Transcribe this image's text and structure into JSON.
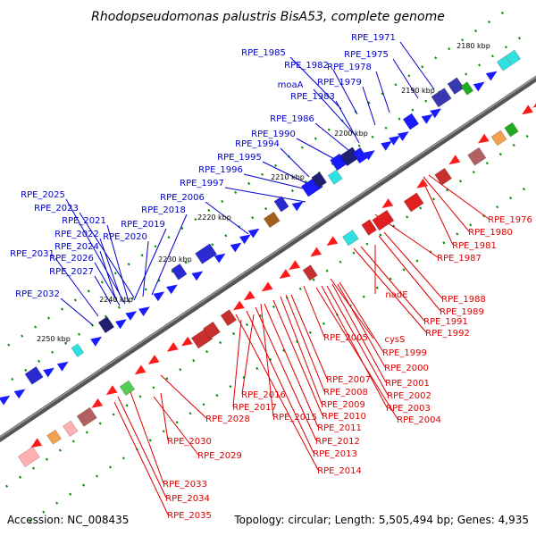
{
  "title": "Rhodopseudomonas palustris BisA53, complete genome",
  "footer": {
    "accession": "Accession: NC_008435",
    "topology": "Topology: circular; Length: 5,505,494 bp; Genes: 4,935"
  },
  "colors": {
    "forward_label": "#0000cc",
    "reverse_label": "#dd0000",
    "forward_gene": "#1a1aff",
    "reverse_gene": "#ff1a1a",
    "backbone": "#555555",
    "tick": "#0a8a0a"
  },
  "kbp_ticks": [
    "2180 kbp",
    "2190 kbp",
    "2200 kbp",
    "2210 kbp",
    "2220 kbp",
    "2230 kbp",
    "2240 kbp",
    "2250 kbp"
  ],
  "forward_labels": [
    "RPE_1971",
    "RPE_1975",
    "RPE_1985",
    "RPE_1982",
    "RPE_1978",
    "moaA",
    "RPE_1979",
    "RPE_1983",
    "RPE_1986",
    "RPE_1990",
    "RPE_1994",
    "RPE_1995",
    "RPE_1996",
    "RPE_1997",
    "RPE_2006",
    "RPE_2018",
    "RPE_2019",
    "RPE_2025",
    "RPE_2023",
    "RPE_2021",
    "RPE_2020",
    "RPE_2022",
    "RPE_2024",
    "RPE_2026",
    "RPE_2031",
    "RPE_2027",
    "RPE_2032"
  ],
  "reverse_labels": [
    "RPE_1976",
    "RPE_1980",
    "RPE_1981",
    "RPE_1987",
    "RPE_1988",
    "RPE_1989",
    "nadE",
    "RPE_1991",
    "RPE_1992",
    "cysS",
    "RPE_2005",
    "RPE_1999",
    "RPE_2000",
    "RPE_2001",
    "RPE_2002",
    "RPE_2003",
    "RPE_2004",
    "RPE_2007",
    "RPE_2008",
    "RPE_2009",
    "RPE_2010",
    "RPE_2011",
    "RPE_2012",
    "RPE_2013",
    "RPE_2014",
    "RPE_2015",
    "RPE_2016",
    "RPE_2017",
    "RPE_2028",
    "RPE_2030",
    "RPE_2029",
    "RPE_2033",
    "RPE_2034",
    "RPE_2035"
  ]
}
